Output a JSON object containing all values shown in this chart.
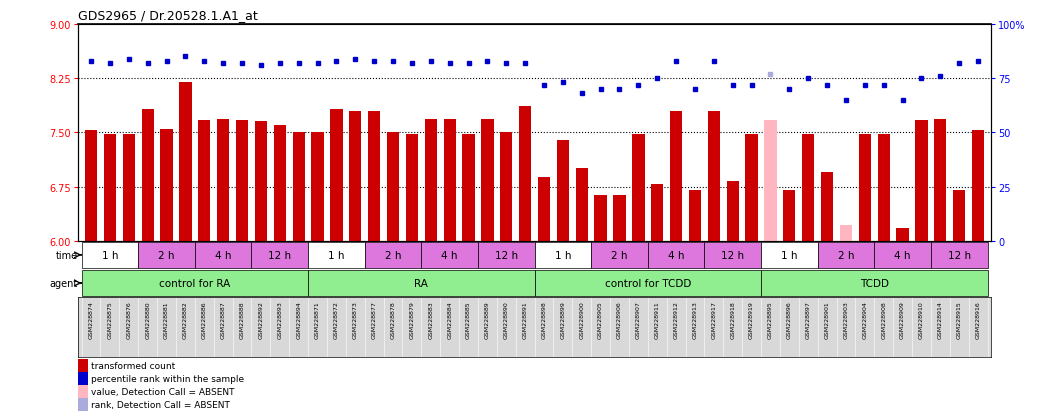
{
  "title": "GDS2965 / Dr.20528.1.A1_at",
  "gsm_ids": [
    "GSM228874",
    "GSM228875",
    "GSM228876",
    "GSM228880",
    "GSM228881",
    "GSM228882",
    "GSM228886",
    "GSM228887",
    "GSM228888",
    "GSM228892",
    "GSM228893",
    "GSM228894",
    "GSM228871",
    "GSM228872",
    "GSM228873",
    "GSM228877",
    "GSM228878",
    "GSM228879",
    "GSM228883",
    "GSM228884",
    "GSM228885",
    "GSM228889",
    "GSM228890",
    "GSM228891",
    "GSM228898",
    "GSM228899",
    "GSM228900",
    "GSM228905",
    "GSM228906",
    "GSM228907",
    "GSM228911",
    "GSM228912",
    "GSM228913",
    "GSM228917",
    "GSM228918",
    "GSM228919",
    "GSM228895",
    "GSM228896",
    "GSM228897",
    "GSM228901",
    "GSM228903",
    "GSM228904",
    "GSM228908",
    "GSM228909",
    "GSM228910",
    "GSM228914",
    "GSM228915",
    "GSM228916"
  ],
  "bar_values": [
    7.53,
    7.47,
    7.47,
    7.82,
    7.55,
    8.2,
    7.67,
    7.68,
    7.67,
    7.65,
    7.6,
    7.5,
    7.5,
    7.82,
    7.8,
    7.8,
    7.5,
    7.48,
    7.68,
    7.68,
    7.48,
    7.68,
    7.5,
    7.86,
    6.88,
    7.4,
    7.0,
    6.63,
    6.63,
    7.47,
    6.78,
    7.8,
    6.7,
    7.8,
    6.83,
    7.47,
    7.67,
    6.7,
    7.47,
    6.95,
    6.22,
    7.47,
    7.47,
    6.18,
    7.67,
    7.68,
    6.7,
    7.53
  ],
  "bar_color_default": "#cc0000",
  "absent_bar_indices": [
    36,
    40
  ],
  "absent_bar_color": "#ffb6c1",
  "percentile_values": [
    83,
    82,
    84,
    82,
    83,
    85,
    83,
    82,
    82,
    81,
    82,
    82,
    82,
    83,
    84,
    83,
    83,
    82,
    83,
    82,
    82,
    83,
    82,
    82,
    72,
    73,
    68,
    70,
    70,
    72,
    75,
    83,
    70,
    83,
    72,
    72,
    77,
    70,
    75,
    72,
    65,
    72,
    72,
    65,
    75,
    76,
    82,
    83
  ],
  "absent_rank_indices": [
    36
  ],
  "absent_rank_color": "#aaaadd",
  "rank_color": "#0000cc",
  "ylim_left": [
    6.0,
    9.0
  ],
  "ylim_right": [
    0,
    100
  ],
  "yticks_left": [
    6.0,
    6.75,
    7.5,
    8.25,
    9.0
  ],
  "yticks_right": [
    0,
    25,
    50,
    75,
    100
  ],
  "grid_values": [
    6.75,
    7.5,
    8.25
  ],
  "bar_width": 0.65,
  "agents": [
    {
      "label": "control for RA",
      "start": 0,
      "end": 11,
      "color": "#90ee90"
    },
    {
      "label": "RA",
      "start": 12,
      "end": 23,
      "color": "#90ee90"
    },
    {
      "label": "control for TCDD",
      "start": 24,
      "end": 35,
      "color": "#90ee90"
    },
    {
      "label": "TCDD",
      "start": 36,
      "end": 47,
      "color": "#90ee90"
    }
  ],
  "time_groups": [
    {
      "label": "1 h",
      "start": 0,
      "end": 2,
      "color": "#ffffff"
    },
    {
      "label": "2 h",
      "start": 3,
      "end": 5,
      "color": "#dd77dd"
    },
    {
      "label": "4 h",
      "start": 6,
      "end": 8,
      "color": "#dd77dd"
    },
    {
      "label": "12 h",
      "start": 9,
      "end": 11,
      "color": "#dd77dd"
    },
    {
      "label": "1 h",
      "start": 12,
      "end": 14,
      "color": "#ffffff"
    },
    {
      "label": "2 h",
      "start": 15,
      "end": 17,
      "color": "#dd77dd"
    },
    {
      "label": "4 h",
      "start": 18,
      "end": 20,
      "color": "#dd77dd"
    },
    {
      "label": "12 h",
      "start": 21,
      "end": 23,
      "color": "#dd77dd"
    },
    {
      "label": "1 h",
      "start": 24,
      "end": 26,
      "color": "#ffffff"
    },
    {
      "label": "2 h",
      "start": 27,
      "end": 29,
      "color": "#dd77dd"
    },
    {
      "label": "4 h",
      "start": 30,
      "end": 32,
      "color": "#dd77dd"
    },
    {
      "label": "12 h",
      "start": 33,
      "end": 35,
      "color": "#dd77dd"
    },
    {
      "label": "1 h",
      "start": 36,
      "end": 38,
      "color": "#ffffff"
    },
    {
      "label": "2 h",
      "start": 39,
      "end": 41,
      "color": "#dd77dd"
    },
    {
      "label": "4 h",
      "start": 42,
      "end": 44,
      "color": "#dd77dd"
    },
    {
      "label": "12 h",
      "start": 45,
      "end": 47,
      "color": "#dd77dd"
    }
  ],
  "legend_items": [
    {
      "color": "#cc0000",
      "label": "transformed count"
    },
    {
      "color": "#0000cc",
      "label": "percentile rank within the sample"
    },
    {
      "color": "#ffb6c1",
      "label": "value, Detection Call = ABSENT"
    },
    {
      "color": "#aaaadd",
      "label": "rank, Detection Call = ABSENT"
    }
  ],
  "label_row_color": "#d8d8d8",
  "gsm_label_fontsize": 4.5,
  "agent_fontsize": 7.5,
  "time_fontsize": 7.5
}
